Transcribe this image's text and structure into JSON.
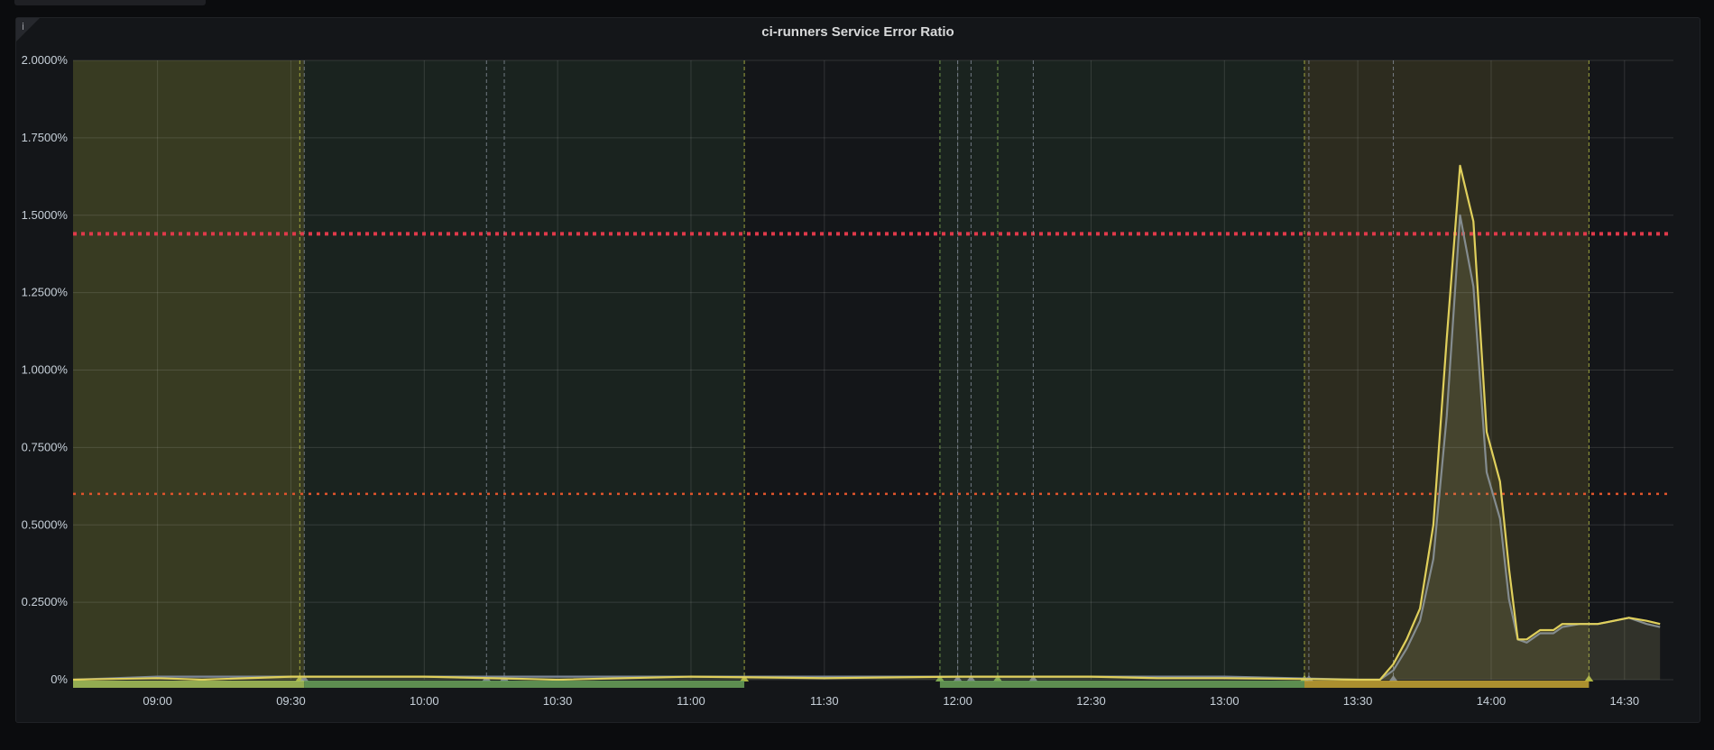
{
  "panel": {
    "info_icon": "i",
    "title": "ci-runners Service Error Ratio"
  },
  "chart_data": {
    "type": "line",
    "title": "ci-runners Service Error Ratio",
    "xlabel": "",
    "ylabel": "",
    "x_range": [
      "08:41",
      "14:41"
    ],
    "ylim": [
      0,
      2.0
    ],
    "y_unit": "%",
    "grid": true,
    "legend": "none",
    "y_ticks": [
      {
        "value": 0,
        "label": "0%"
      },
      {
        "value": 0.25,
        "label": "0.2500%"
      },
      {
        "value": 0.5,
        "label": "0.5000%"
      },
      {
        "value": 0.75,
        "label": "0.7500%"
      },
      {
        "value": 1.0,
        "label": "1.0000%"
      },
      {
        "value": 1.25,
        "label": "1.2500%"
      },
      {
        "value": 1.5,
        "label": "1.5000%"
      },
      {
        "value": 1.75,
        "label": "1.7500%"
      },
      {
        "value": 2.0,
        "label": "2.0000%"
      }
    ],
    "x_ticks": [
      {
        "value": "09:00",
        "label": "09:00"
      },
      {
        "value": "09:30",
        "label": "09:30"
      },
      {
        "value": "10:00",
        "label": "10:00"
      },
      {
        "value": "10:30",
        "label": "10:30"
      },
      {
        "value": "11:00",
        "label": "11:00"
      },
      {
        "value": "11:30",
        "label": "11:30"
      },
      {
        "value": "12:00",
        "label": "12:00"
      },
      {
        "value": "12:30",
        "label": "12:30"
      },
      {
        "value": "13:00",
        "label": "13:00"
      },
      {
        "value": "13:30",
        "label": "13:30"
      },
      {
        "value": "14:00",
        "label": "14:00"
      },
      {
        "value": "14:30",
        "label": "14:30"
      }
    ],
    "thresholds": [
      {
        "value": 1.44,
        "color": "#e0394a",
        "style": "dotted-thick"
      },
      {
        "value": 0.6,
        "color": "#e0542c",
        "style": "dotted"
      }
    ],
    "regions": [
      {
        "start": "08:41",
        "end": "09:33",
        "color": "#c8d048",
        "opacity": 0.2,
        "bar": "#a9c55c"
      },
      {
        "start": "09:33",
        "end": "11:12",
        "color": "#58a05a",
        "opacity": 0.1,
        "bar": "#6aa25a"
      },
      {
        "start": "11:56",
        "end": "13:18",
        "color": "#58a05a",
        "opacity": 0.1,
        "bar": "#6aa25a"
      },
      {
        "start": "13:18",
        "end": "14:22",
        "color": "#d6c34a",
        "opacity": 0.13,
        "bar": "#c5a434"
      }
    ],
    "annotations": [
      {
        "time": "09:32",
        "color": "#c8d048"
      },
      {
        "time": "09:33",
        "color": "#8e96a4"
      },
      {
        "time": "10:14",
        "color": "#8e96a4"
      },
      {
        "time": "10:18",
        "color": "#8e96a4"
      },
      {
        "time": "11:12",
        "color": "#c8d048"
      },
      {
        "time": "11:56",
        "color": "#8fbf5a"
      },
      {
        "time": "12:00",
        "color": "#8e96a4"
      },
      {
        "time": "12:03",
        "color": "#8e96a4"
      },
      {
        "time": "12:09",
        "color": "#8fbf5a"
      },
      {
        "time": "12:17",
        "color": "#8e96a4"
      },
      {
        "time": "13:18",
        "color": "#c8d048"
      },
      {
        "time": "13:19",
        "color": "#8e96a4"
      },
      {
        "time": "13:38",
        "color": "#8e96a4"
      },
      {
        "time": "14:22",
        "color": "#c8d048"
      }
    ],
    "series": [
      {
        "color": "#7a8596",
        "points": [
          [
            "08:41",
            0.0
          ],
          [
            "09:00",
            0.01
          ],
          [
            "09:30",
            0.01
          ],
          [
            "10:00",
            0.01
          ],
          [
            "10:30",
            0.01
          ],
          [
            "11:00",
            0.01
          ],
          [
            "11:30",
            0.01
          ],
          [
            "12:00",
            0.01
          ],
          [
            "12:30",
            0.01
          ],
          [
            "13:00",
            0.01
          ],
          [
            "13:30",
            0.0
          ],
          [
            "13:35",
            0.0
          ],
          [
            "13:38",
            0.03
          ],
          [
            "13:41",
            0.1
          ],
          [
            "13:44",
            0.19
          ],
          [
            "13:47",
            0.39
          ],
          [
            "13:50",
            0.85
          ],
          [
            "13:53",
            1.5
          ],
          [
            "13:56",
            1.27
          ],
          [
            "13:59",
            0.67
          ],
          [
            "14:02",
            0.52
          ],
          [
            "14:04",
            0.26
          ],
          [
            "14:06",
            0.13
          ],
          [
            "14:08",
            0.12
          ],
          [
            "14:11",
            0.15
          ],
          [
            "14:14",
            0.15
          ],
          [
            "14:16",
            0.17
          ],
          [
            "14:20",
            0.18
          ],
          [
            "14:24",
            0.18
          ],
          [
            "14:31",
            0.2
          ],
          [
            "14:35",
            0.18
          ],
          [
            "14:38",
            0.17
          ]
        ]
      },
      {
        "color": "#e0d05c",
        "points": [
          [
            "08:41",
            0.0
          ],
          [
            "09:00",
            0.005
          ],
          [
            "09:10",
            0.0
          ],
          [
            "09:30",
            0.01
          ],
          [
            "10:00",
            0.01
          ],
          [
            "10:30",
            0.0
          ],
          [
            "11:00",
            0.01
          ],
          [
            "11:30",
            0.005
          ],
          [
            "12:00",
            0.01
          ],
          [
            "12:30",
            0.01
          ],
          [
            "12:45",
            0.005
          ],
          [
            "13:00",
            0.005
          ],
          [
            "13:30",
            0.0
          ],
          [
            "13:35",
            0.0
          ],
          [
            "13:38",
            0.05
          ],
          [
            "13:41",
            0.13
          ],
          [
            "13:44",
            0.23
          ],
          [
            "13:47",
            0.5
          ],
          [
            "13:50",
            1.1
          ],
          [
            "13:53",
            1.66
          ],
          [
            "13:56",
            1.48
          ],
          [
            "13:59",
            0.8
          ],
          [
            "14:02",
            0.64
          ],
          [
            "14:04",
            0.36
          ],
          [
            "14:06",
            0.13
          ],
          [
            "14:08",
            0.13
          ],
          [
            "14:11",
            0.16
          ],
          [
            "14:14",
            0.16
          ],
          [
            "14:16",
            0.18
          ],
          [
            "14:20",
            0.18
          ],
          [
            "14:24",
            0.18
          ],
          [
            "14:31",
            0.2
          ],
          [
            "14:35",
            0.19
          ],
          [
            "14:38",
            0.18
          ]
        ]
      }
    ]
  }
}
